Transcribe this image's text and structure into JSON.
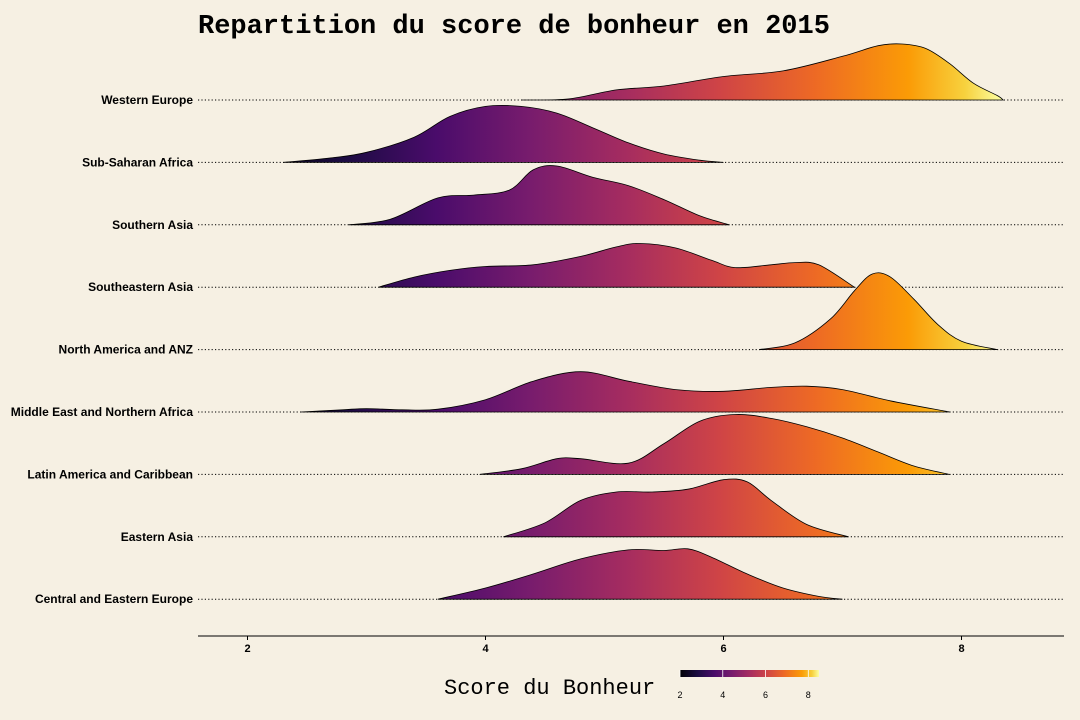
{
  "chart_data": {
    "type": "ridgeline",
    "title": "Repartition du score de bonheur en 2015",
    "xlabel": "Score du Bonheur",
    "xlim": [
      1.6,
      8.85
    ],
    "xticks": [
      2,
      4,
      6,
      8
    ],
    "grid": "dotted baselines per category",
    "legend": {
      "position": "bottom",
      "title": "Score du Bonheur",
      "ticks": [
        2,
        4,
        6,
        8
      ],
      "colormap": "inferno",
      "range": [
        2,
        8.5
      ]
    },
    "series": [
      {
        "name": "Western Europe",
        "density": [
          [
            4.3,
            0
          ],
          [
            4.7,
            0.02
          ],
          [
            5.1,
            0.18
          ],
          [
            5.5,
            0.25
          ],
          [
            6.0,
            0.42
          ],
          [
            6.5,
            0.52
          ],
          [
            7.0,
            0.78
          ],
          [
            7.3,
            0.97
          ],
          [
            7.5,
            1.0
          ],
          [
            7.7,
            0.92
          ],
          [
            7.9,
            0.65
          ],
          [
            8.1,
            0.3
          ],
          [
            8.3,
            0.08
          ],
          [
            8.35,
            0
          ]
        ]
      },
      {
        "name": "Sub-Saharan Africa",
        "density": [
          [
            2.3,
            0
          ],
          [
            2.7,
            0.08
          ],
          [
            3.0,
            0.18
          ],
          [
            3.4,
            0.45
          ],
          [
            3.7,
            0.82
          ],
          [
            4.0,
            1.0
          ],
          [
            4.3,
            1.0
          ],
          [
            4.6,
            0.88
          ],
          [
            4.9,
            0.62
          ],
          [
            5.2,
            0.35
          ],
          [
            5.5,
            0.15
          ],
          [
            5.8,
            0.04
          ],
          [
            6.0,
            0
          ]
        ]
      },
      {
        "name": "Southern Asia",
        "density": [
          [
            2.85,
            0
          ],
          [
            3.2,
            0.1
          ],
          [
            3.6,
            0.48
          ],
          [
            3.9,
            0.53
          ],
          [
            4.2,
            0.62
          ],
          [
            4.4,
            0.98
          ],
          [
            4.6,
            1.05
          ],
          [
            4.9,
            0.85
          ],
          [
            5.2,
            0.7
          ],
          [
            5.5,
            0.45
          ],
          [
            5.8,
            0.16
          ],
          [
            6.05,
            0
          ]
        ]
      },
      {
        "name": "Southeastern Asia",
        "density": [
          [
            3.1,
            0
          ],
          [
            3.4,
            0.18
          ],
          [
            3.7,
            0.3
          ],
          [
            4.0,
            0.37
          ],
          [
            4.4,
            0.4
          ],
          [
            4.8,
            0.55
          ],
          [
            5.1,
            0.72
          ],
          [
            5.3,
            0.78
          ],
          [
            5.6,
            0.7
          ],
          [
            5.9,
            0.48
          ],
          [
            6.1,
            0.35
          ],
          [
            6.4,
            0.4
          ],
          [
            6.6,
            0.44
          ],
          [
            6.8,
            0.4
          ],
          [
            7.1,
            0
          ]
        ]
      },
      {
        "name": "North America and ANZ",
        "density": [
          [
            6.3,
            0
          ],
          [
            6.6,
            0.12
          ],
          [
            6.9,
            0.55
          ],
          [
            7.1,
            1.05
          ],
          [
            7.25,
            1.35
          ],
          [
            7.4,
            1.3
          ],
          [
            7.6,
            0.9
          ],
          [
            7.8,
            0.45
          ],
          [
            8.0,
            0.15
          ],
          [
            8.3,
            0
          ]
        ]
      },
      {
        "name": "Middle East and Northern Africa",
        "density": [
          [
            2.45,
            0
          ],
          [
            2.8,
            0.04
          ],
          [
            3.0,
            0.06
          ],
          [
            3.3,
            0.04
          ],
          [
            3.6,
            0.05
          ],
          [
            4.0,
            0.22
          ],
          [
            4.4,
            0.55
          ],
          [
            4.8,
            0.72
          ],
          [
            5.2,
            0.55
          ],
          [
            5.6,
            0.4
          ],
          [
            6.0,
            0.37
          ],
          [
            6.4,
            0.44
          ],
          [
            6.7,
            0.46
          ],
          [
            7.0,
            0.4
          ],
          [
            7.4,
            0.2
          ],
          [
            7.9,
            0
          ]
        ]
      },
      {
        "name": "Latin America and Caribbean",
        "density": [
          [
            3.95,
            0
          ],
          [
            4.3,
            0.1
          ],
          [
            4.6,
            0.28
          ],
          [
            4.8,
            0.28
          ],
          [
            5.2,
            0.2
          ],
          [
            5.5,
            0.55
          ],
          [
            5.8,
            0.95
          ],
          [
            6.1,
            1.07
          ],
          [
            6.4,
            1.0
          ],
          [
            6.7,
            0.85
          ],
          [
            7.0,
            0.65
          ],
          [
            7.3,
            0.4
          ],
          [
            7.6,
            0.15
          ],
          [
            7.9,
            0
          ]
        ]
      },
      {
        "name": "Eastern Asia",
        "density": [
          [
            4.15,
            0
          ],
          [
            4.5,
            0.25
          ],
          [
            4.8,
            0.65
          ],
          [
            5.1,
            0.8
          ],
          [
            5.4,
            0.8
          ],
          [
            5.7,
            0.85
          ],
          [
            6.0,
            1.02
          ],
          [
            6.2,
            0.98
          ],
          [
            6.4,
            0.65
          ],
          [
            6.7,
            0.22
          ],
          [
            7.05,
            0
          ]
        ]
      },
      {
        "name": "Central and Eastern Europe",
        "density": [
          [
            3.6,
            0
          ],
          [
            4.0,
            0.2
          ],
          [
            4.4,
            0.45
          ],
          [
            4.8,
            0.72
          ],
          [
            5.2,
            0.88
          ],
          [
            5.5,
            0.87
          ],
          [
            5.7,
            0.9
          ],
          [
            5.9,
            0.75
          ],
          [
            6.2,
            0.45
          ],
          [
            6.5,
            0.2
          ],
          [
            6.8,
            0.05
          ],
          [
            7.0,
            0
          ]
        ]
      }
    ]
  }
}
